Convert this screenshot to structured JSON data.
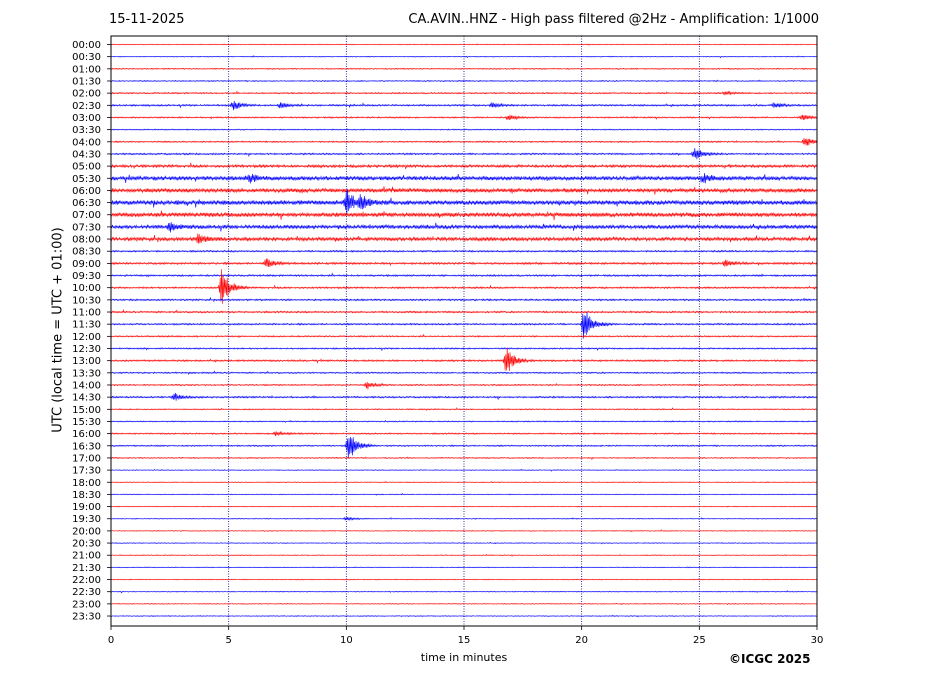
{
  "header": {
    "date": "15-11-2025",
    "title": "CA.AVIN..HNZ - High pass filtered @2Hz - Amplification: 1/1000"
  },
  "footer": {
    "copyright": "©ICGC 2025"
  },
  "colors": {
    "red": "#ff0000",
    "blue": "#0000ff",
    "grid": "#000080",
    "axis": "#000000"
  },
  "chart_data": {
    "type": "line",
    "title": "CA.AVIN..HNZ - High pass filtered @2Hz - Amplification: 1/1000",
    "xlabel": "time in minutes",
    "ylabel": "UTC (local time = UTC + 01:00)",
    "xlim": [
      0,
      30
    ],
    "x_ticks": [
      0,
      5,
      10,
      15,
      20,
      25,
      30
    ],
    "x_grid": [
      5,
      10,
      15,
      20,
      25
    ],
    "row_labels": [
      "00:00",
      "00:30",
      "01:00",
      "01:30",
      "02:00",
      "02:30",
      "03:00",
      "03:30",
      "04:00",
      "04:30",
      "05:00",
      "05:30",
      "06:00",
      "06:30",
      "07:00",
      "07:30",
      "08:00",
      "08:30",
      "09:00",
      "09:30",
      "10:00",
      "10:30",
      "11:00",
      "11:30",
      "12:00",
      "12:30",
      "13:00",
      "13:30",
      "14:00",
      "14:30",
      "15:00",
      "15:30",
      "16:00",
      "16:30",
      "17:00",
      "17:30",
      "18:00",
      "18:30",
      "19:00",
      "19:30",
      "20:00",
      "20:30",
      "21:00",
      "21:30",
      "22:00",
      "22:30",
      "23:00",
      "23:30"
    ],
    "row_colors": [
      "red",
      "blue"
    ],
    "noise_level": [
      0.3,
      0.3,
      0.4,
      0.4,
      0.5,
      0.6,
      0.5,
      0.4,
      0.5,
      0.6,
      0.9,
      1.4,
      1.4,
      1.6,
      1.5,
      1.3,
      1.2,
      0.6,
      0.7,
      0.6,
      0.6,
      0.6,
      0.6,
      0.6,
      0.5,
      0.5,
      0.6,
      0.5,
      0.5,
      0.6,
      0.4,
      0.4,
      0.5,
      0.5,
      0.4,
      0.3,
      0.3,
      0.3,
      0.3,
      0.3,
      0.3,
      0.3,
      0.3,
      0.3,
      0.3,
      0.3,
      0.3,
      0.3
    ],
    "events": [
      {
        "row": "02:30",
        "x": 5.2,
        "amp": 5
      },
      {
        "row": "02:30",
        "x": 7.2,
        "amp": 3
      },
      {
        "row": "02:30",
        "x": 16.2,
        "amp": 3
      },
      {
        "row": "02:30",
        "x": 28.2,
        "amp": 3
      },
      {
        "row": "02:00",
        "x": 26.1,
        "amp": 2
      },
      {
        "row": "03:00",
        "x": 16.9,
        "amp": 3
      },
      {
        "row": "03:00",
        "x": 29.4,
        "amp": 3
      },
      {
        "row": "04:00",
        "x": 29.5,
        "amp": 5
      },
      {
        "row": "04:30",
        "x": 24.8,
        "amp": 7
      },
      {
        "row": "05:30",
        "x": 5.9,
        "amp": 4
      },
      {
        "row": "05:30",
        "x": 25.2,
        "amp": 4
      },
      {
        "row": "06:30",
        "x": 10.0,
        "amp": 15
      },
      {
        "row": "06:30",
        "x": 10.6,
        "amp": 7
      },
      {
        "row": "07:30",
        "x": 2.5,
        "amp": 5
      },
      {
        "row": "08:00",
        "x": 3.7,
        "amp": 5
      },
      {
        "row": "09:00",
        "x": 6.6,
        "amp": 5
      },
      {
        "row": "09:00",
        "x": 26.1,
        "amp": 4
      },
      {
        "row": "10:00",
        "x": 4.7,
        "amp": 22
      },
      {
        "row": "11:30",
        "x": 20.1,
        "amp": 18
      },
      {
        "row": "13:00",
        "x": 16.8,
        "amp": 15
      },
      {
        "row": "14:00",
        "x": 10.9,
        "amp": 4
      },
      {
        "row": "14:30",
        "x": 2.7,
        "amp": 4
      },
      {
        "row": "16:00",
        "x": 7.0,
        "amp": 2
      },
      {
        "row": "16:30",
        "x": 10.1,
        "amp": 16
      },
      {
        "row": "19:30",
        "x": 10.0,
        "amp": 2
      }
    ]
  }
}
